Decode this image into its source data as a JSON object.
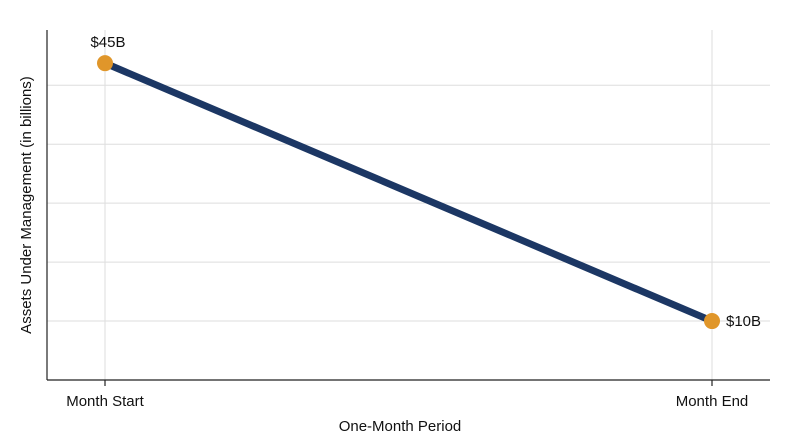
{
  "chart_data": {
    "type": "line",
    "categories": [
      "Month Start",
      "Month End"
    ],
    "series": [
      {
        "color": "#1c3764",
        "marker_color": "#e0962a",
        "values": [
          45,
          10
        ],
        "value_labels": [
          "$45B",
          "$10B"
        ]
      }
    ],
    "x_label": "One-Month Period",
    "y_label": "Assets Under Management (in billions)",
    "ylim": [
      2,
      49.5
    ],
    "yticks": [
      10,
      18,
      26,
      34,
      42
    ],
    "grid": true
  }
}
